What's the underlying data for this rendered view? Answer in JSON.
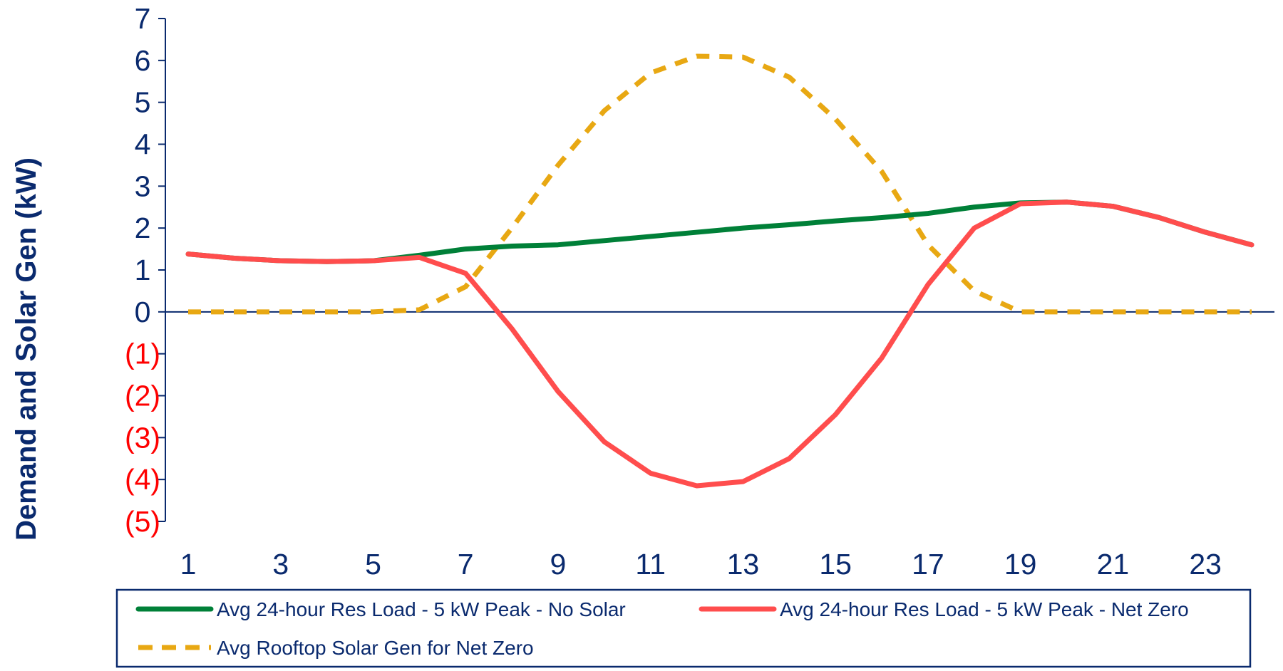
{
  "chart_data": {
    "type": "line",
    "title": "",
    "xlabel": "",
    "ylabel": "Demand and Solar Gen (kW)",
    "x": [
      1,
      2,
      3,
      4,
      5,
      6,
      7,
      8,
      9,
      10,
      11,
      12,
      13,
      14,
      15,
      16,
      17,
      18,
      19,
      20,
      21,
      22,
      23,
      24
    ],
    "x_tick_labels": [
      "1",
      "3",
      "5",
      "7",
      "9",
      "11",
      "13",
      "15",
      "17",
      "19",
      "21",
      "23"
    ],
    "x_ticks": [
      1,
      3,
      5,
      7,
      9,
      11,
      13,
      15,
      17,
      19,
      21,
      23
    ],
    "y_ticks": [
      7,
      6,
      5,
      4,
      3,
      2,
      1,
      0,
      -1,
      -2,
      -3,
      -4,
      -5
    ],
    "y_tick_labels": [
      "7",
      "6",
      "5",
      "4",
      "3",
      "2",
      "1",
      "0",
      "(1)",
      "(2)",
      "(3)",
      "(4)",
      "(5)"
    ],
    "ylim": [
      -5,
      7
    ],
    "xlim": [
      1,
      24
    ],
    "grid": false,
    "legend_placement": "bottom",
    "colors": {
      "axis": "#0a2a6e",
      "negative_tick": "#ff0000",
      "green": "#008038",
      "red": "#ff4d4d",
      "solar": "#e8a813"
    },
    "series": [
      {
        "name": "Avg 24-hour Res Load - 5 kW Peak - No Solar",
        "color": "#008038",
        "style": "solid",
        "values": [
          1.38,
          1.28,
          1.22,
          1.2,
          1.22,
          1.35,
          1.5,
          1.57,
          1.6,
          1.7,
          1.8,
          1.9,
          2.0,
          2.08,
          2.17,
          2.25,
          2.35,
          2.5,
          2.6,
          2.62,
          2.52,
          2.25,
          1.9,
          1.6
        ]
      },
      {
        "name": "Avg 24-hour Res Load - 5 kW Peak - Net Zero",
        "color": "#ff4d4d",
        "style": "solid",
        "values": [
          1.38,
          1.28,
          1.22,
          1.2,
          1.22,
          1.3,
          0.92,
          -0.4,
          -1.9,
          -3.1,
          -3.85,
          -4.15,
          -4.05,
          -3.5,
          -2.45,
          -1.1,
          0.65,
          2.0,
          2.58,
          2.62,
          2.52,
          2.25,
          1.9,
          1.6
        ]
      },
      {
        "name": "Avg Rooftop Solar Gen for Net Zero",
        "color": "#e8a813",
        "style": "dashed",
        "values": [
          0,
          0,
          0,
          0,
          0,
          0.05,
          0.6,
          2.0,
          3.5,
          4.8,
          5.7,
          6.1,
          6.08,
          5.6,
          4.6,
          3.35,
          1.6,
          0.5,
          0,
          0,
          0,
          0,
          0,
          0
        ]
      }
    ]
  }
}
